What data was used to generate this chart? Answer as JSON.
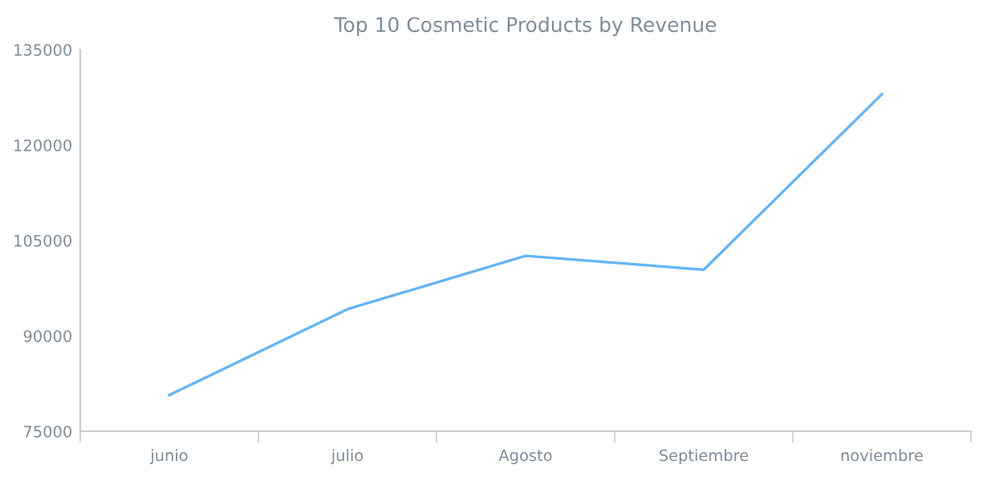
{
  "chart_data": {
    "type": "line",
    "title": "Top 10 Cosmetic Products by Revenue",
    "categories": [
      "junio",
      "julio",
      "Agosto",
      "Septiembre",
      "noviembre"
    ],
    "series": [
      {
        "color": "#64b5f6",
        "values": [
          80700,
          94200,
          102600,
          100400,
          128000
        ]
      }
    ],
    "ylim": [
      75000,
      135000
    ],
    "yticks": [
      75000,
      90000,
      105000,
      120000,
      135000
    ],
    "grid": false,
    "legend": false,
    "marker": "none",
    "line_style": "solid"
  }
}
